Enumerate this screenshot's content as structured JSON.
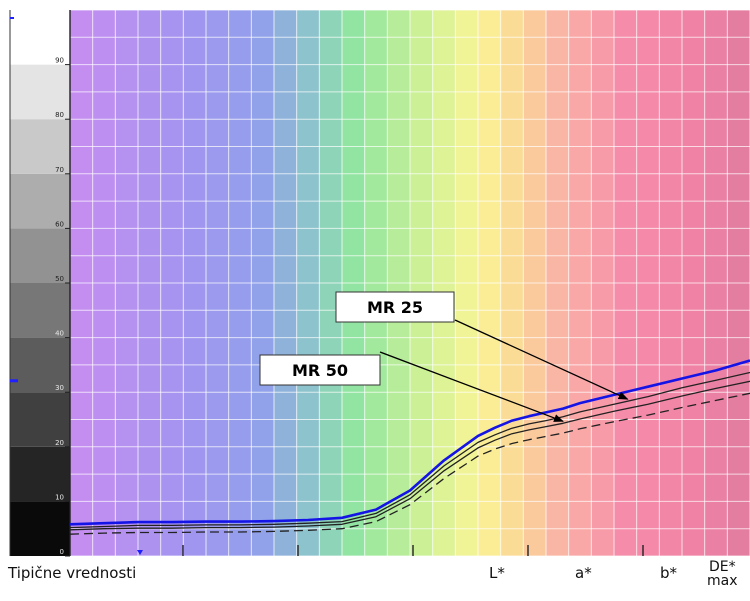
{
  "chart_data": {
    "type": "line",
    "x": [
      0,
      5,
      10,
      15,
      20,
      25,
      30,
      35,
      40,
      45,
      50,
      55,
      60,
      62.5,
      65,
      67.5,
      70,
      72.5,
      75,
      80,
      85,
      90,
      95,
      100
    ],
    "ylim": [
      0,
      100
    ],
    "yticks": [
      "0",
      "10",
      "20",
      "30",
      "40",
      "50",
      "60",
      "70",
      "80",
      "90"
    ],
    "grid": true,
    "series": [
      {
        "color": "#1414e6",
        "style": "solid",
        "values": [
          5.8,
          6.0,
          6.2,
          6.2,
          6.3,
          6.3,
          6.4,
          6.6,
          7.0,
          8.5,
          12.0,
          17.5,
          22.0,
          23.5,
          24.8,
          25.6,
          26.3,
          27.0,
          28.0,
          29.5,
          31.0,
          32.5,
          34.0,
          35.8
        ]
      },
      {
        "name": "MR 25",
        "color": "#222222",
        "style": "solid",
        "values": [
          5.2,
          5.4,
          5.6,
          5.6,
          5.7,
          5.7,
          5.8,
          6.0,
          6.3,
          7.8,
          11.2,
          16.5,
          20.8,
          22.2,
          23.4,
          24.2,
          24.8,
          25.5,
          26.4,
          27.8,
          29.2,
          30.8,
          32.2,
          33.6
        ]
      },
      {
        "name": "MR 50",
        "color": "#222222",
        "style": "solid",
        "values": [
          4.8,
          5.0,
          5.1,
          5.1,
          5.2,
          5.2,
          5.3,
          5.5,
          5.8,
          7.2,
          10.5,
          15.6,
          19.8,
          21.2,
          22.4,
          23.1,
          23.7,
          24.3,
          25.1,
          26.5,
          27.8,
          29.3,
          30.7,
          32.0
        ]
      },
      {
        "color": "#222222",
        "style": "dashed",
        "values": [
          4.0,
          4.2,
          4.3,
          4.3,
          4.4,
          4.4,
          4.5,
          4.7,
          5.0,
          6.3,
          9.4,
          14.2,
          18.3,
          19.6,
          20.6,
          21.3,
          21.9,
          22.5,
          23.3,
          24.6,
          25.8,
          27.2,
          28.5,
          29.8
        ]
      }
    ],
    "annotations": [
      {
        "label": "MR 25",
        "series": "MR 25"
      },
      {
        "label": "MR 50",
        "series": "MR 50"
      }
    ],
    "bottom_labels": [
      "Tipične vrednosti",
      "L*",
      "a*",
      "b*",
      "DE*\nmax"
    ]
  }
}
